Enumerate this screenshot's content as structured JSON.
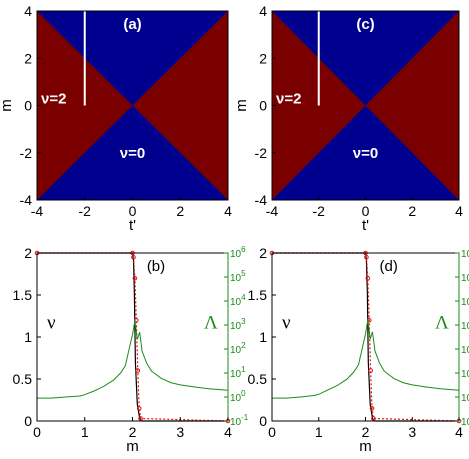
{
  "chart_data": [
    {
      "type": "heatmap",
      "panel_label": "(a)",
      "xlabel": "t'",
      "ylabel": "m",
      "xlim": [
        -4,
        4
      ],
      "ylim": [
        -4,
        4
      ],
      "x_ticks": [
        "-4",
        "-2",
        "0",
        "2",
        "4"
      ],
      "y_ticks": [
        "-4",
        "-2",
        "0",
        "2",
        "4"
      ],
      "regions": [
        {
          "label": "ν=2",
          "condition": "|m| < |t'|",
          "color": "#7a0000"
        },
        {
          "label": "ν=0",
          "condition": "|m| > |t'|",
          "color": "#00008f"
        }
      ],
      "cut_line": {
        "x": -2,
        "y_from": 0,
        "y_to": 4,
        "color": "#ffffff"
      }
    },
    {
      "type": "heatmap",
      "panel_label": "(c)",
      "xlabel": "t'",
      "ylabel": "m",
      "xlim": [
        -4,
        4
      ],
      "ylim": [
        -4,
        4
      ],
      "x_ticks": [
        "-4",
        "-2",
        "0",
        "2",
        "4"
      ],
      "y_ticks": [
        "-4",
        "-2",
        "0",
        "2",
        "4"
      ],
      "regions": [
        {
          "label": "ν=2",
          "condition": "|m| < |t'|",
          "color": "#7a0000"
        },
        {
          "label": "ν=0",
          "condition": "|m| > |t'|",
          "color": "#00008f"
        }
      ],
      "cut_line": {
        "x": -2,
        "y_from": 0,
        "y_to": 4,
        "color": "#ffffff"
      }
    },
    {
      "type": "line",
      "panel_label": "(b)",
      "xlabel": "m",
      "ylabel": "ν",
      "ylabel_right": "Λ",
      "xlim": [
        0,
        4
      ],
      "ylim": [
        0,
        2
      ],
      "ylim_right": [
        0.1,
        1000000
      ],
      "right_scale": "log",
      "x_ticks": [
        "0",
        "1",
        "2",
        "3",
        "4"
      ],
      "y_ticks": [
        "0",
        "0.5",
        "1",
        "1.5",
        "2"
      ],
      "y_ticks_right": [
        "10",
        "10",
        "10",
        "10",
        "10",
        "10",
        "10",
        "10"
      ],
      "y_ticks_right_exp": [
        "-1",
        "0",
        "1",
        "2",
        "3",
        "4",
        "5",
        "6"
      ],
      "series": [
        {
          "axis": "left",
          "color": "#000000",
          "style": "solid",
          "x": [
            0,
            1.9,
            2.0,
            2.02,
            2.04,
            2.06,
            2.1,
            2.15,
            2.2,
            4.0
          ],
          "y": [
            2,
            2,
            2,
            1.92,
            1.5,
            0.7,
            0.2,
            0.03,
            0,
            0
          ]
        },
        {
          "axis": "left",
          "color": "#e01010",
          "style": "dotted-markers",
          "x": [
            0,
            2.0,
            2.02,
            2.05,
            2.08,
            2.11,
            2.14,
            2.17,
            4.0
          ],
          "y": [
            2,
            2,
            1.95,
            1.7,
            1.2,
            0.6,
            0.15,
            0.03,
            0
          ]
        },
        {
          "axis": "right",
          "color": "#1a8c1a",
          "style": "solid",
          "x": [
            0,
            0.3,
            0.6,
            0.9,
            1.0,
            1.2,
            1.4,
            1.6,
            1.75,
            1.85,
            1.95,
            2.0,
            2.05,
            2.1,
            2.15,
            2.2,
            2.3,
            2.4,
            2.6,
            2.8,
            3.0,
            3.3,
            3.6,
            4.0
          ],
          "y": [
            0.9,
            0.9,
            1.0,
            1.1,
            1.25,
            1.8,
            2.8,
            5,
            10,
            20,
            150,
            400,
            1500,
            250,
            500,
            80,
            25,
            12,
            6,
            4,
            3.2,
            2.6,
            2.2,
            1.9
          ]
        }
      ]
    },
    {
      "type": "line",
      "panel_label": "(d)",
      "xlabel": "m",
      "ylabel": "ν",
      "ylabel_right": "Λ",
      "xlim": [
        0,
        4
      ],
      "ylim": [
        0,
        2
      ],
      "ylim_right": [
        0.1,
        1000000
      ],
      "right_scale": "log",
      "x_ticks": [
        "0",
        "1",
        "2",
        "3",
        "4"
      ],
      "y_ticks": [
        "0",
        "0.5",
        "1",
        "1.5",
        "2"
      ],
      "y_ticks_right": [
        "10",
        "10",
        "10",
        "10",
        "10",
        "10",
        "10",
        "10"
      ],
      "y_ticks_right_exp": [
        "-1",
        "0",
        "1",
        "2",
        "3",
        "4",
        "5",
        "6"
      ],
      "series": [
        {
          "axis": "left",
          "color": "#000000",
          "style": "solid",
          "x": [
            0,
            1.9,
            2.0,
            2.02,
            2.04,
            2.06,
            2.1,
            2.15,
            2.2,
            4.0
          ],
          "y": [
            2,
            2,
            2,
            1.92,
            1.5,
            0.7,
            0.2,
            0.03,
            0,
            0
          ]
        },
        {
          "axis": "left",
          "color": "#e01010",
          "style": "dotted-markers",
          "x": [
            0,
            2.0,
            2.02,
            2.05,
            2.08,
            2.11,
            2.14,
            2.17,
            4.0
          ],
          "y": [
            2,
            2,
            1.95,
            1.7,
            1.2,
            0.6,
            0.15,
            0.03,
            0
          ]
        },
        {
          "axis": "right",
          "color": "#1a8c1a",
          "style": "solid",
          "x": [
            0,
            0.3,
            0.6,
            0.9,
            1.0,
            1.2,
            1.4,
            1.6,
            1.75,
            1.85,
            1.95,
            2.0,
            2.05,
            2.1,
            2.15,
            2.2,
            2.3,
            2.4,
            2.6,
            2.8,
            3.0,
            3.3,
            3.6,
            4.0
          ],
          "y": [
            0.9,
            0.9,
            1.0,
            1.15,
            1.3,
            2.0,
            3.0,
            5.5,
            11,
            22,
            160,
            420,
            1600,
            260,
            520,
            85,
            26,
            12,
            6,
            4,
            3.2,
            2.6,
            2.2,
            1.9
          ]
        }
      ]
    }
  ]
}
